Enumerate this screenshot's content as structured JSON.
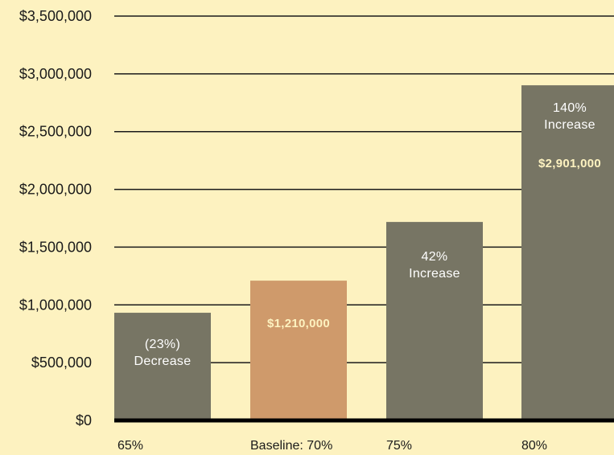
{
  "colors": {
    "background": "#fdf2c0",
    "bar_default": "#777564",
    "bar_baseline": "#cf9a6b",
    "highlight_text": "#fdf2c0",
    "annotation_text": "#ffffff",
    "gridline": "#1a1a1a"
  },
  "chart_data": {
    "type": "bar",
    "title": "",
    "xlabel": "",
    "ylabel": "",
    "ylim": [
      0,
      3500000
    ],
    "y_ticks": [
      0,
      500000,
      1000000,
      1500000,
      2000000,
      2500000,
      3000000,
      3500000
    ],
    "y_tick_labels": [
      "$0",
      "$500,000",
      "$1,000,000",
      "$1,500,000",
      "$2,000,000",
      "$2,500,000",
      "$3,000,000",
      "$3,500,000"
    ],
    "grid": true,
    "categories": [
      "65%",
      "Baseline: 70%",
      "75%",
      "80%"
    ],
    "values": [
      932000,
      1210000,
      1718000,
      2901000
    ],
    "bar_colors": [
      "#777564",
      "#cf9a6b",
      "#777564",
      "#777564"
    ],
    "annotations": [
      {
        "lines": [
          "(23%)",
          "Decrease"
        ],
        "value_label": ""
      },
      {
        "lines": [],
        "value_label": "$1,210,000"
      },
      {
        "lines": [
          "42%",
          "Increase"
        ],
        "value_label": ""
      },
      {
        "lines": [
          "140%",
          "Increase"
        ],
        "value_label": "$2,901,000"
      }
    ]
  }
}
